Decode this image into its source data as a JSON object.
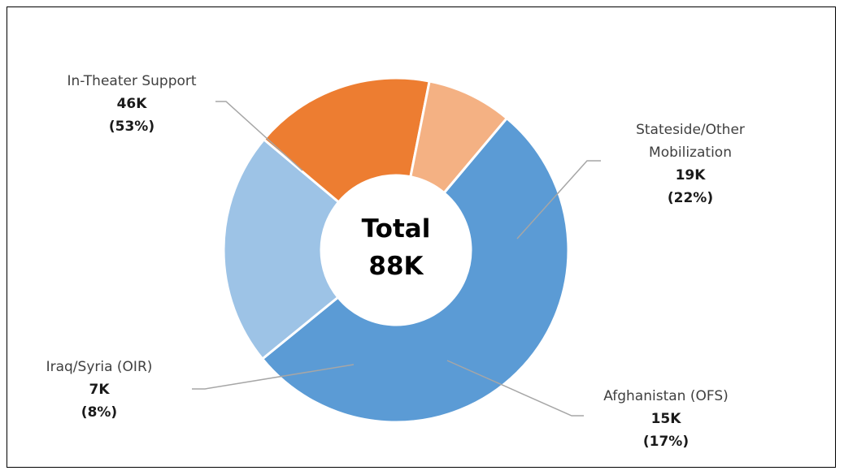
{
  "chart_data": {
    "type": "pie",
    "variant": "donut",
    "center_label": {
      "line1": "Total",
      "line2": "88K"
    },
    "legend": "none",
    "slices": [
      {
        "name_lines": [
          "In-Theater Support"
        ],
        "value_label": "46K",
        "percent_label": "(53%)",
        "percent": 53,
        "color": "#5b9bd5"
      },
      {
        "name_lines": [
          "Stateside/Other",
          "Mobilization"
        ],
        "value_label": "19K",
        "percent_label": "(22%)",
        "percent": 22,
        "color": "#9dc3e6"
      },
      {
        "name_lines": [
          "Afghanistan (OFS)"
        ],
        "value_label": "15K",
        "percent_label": "(17%)",
        "percent": 17,
        "color": "#ed7d31"
      },
      {
        "name_lines": [
          "Iraq/Syria (OIR)"
        ],
        "value_label": "7K",
        "percent_label": "(8%)",
        "percent": 8,
        "color": "#f4b183"
      }
    ]
  }
}
